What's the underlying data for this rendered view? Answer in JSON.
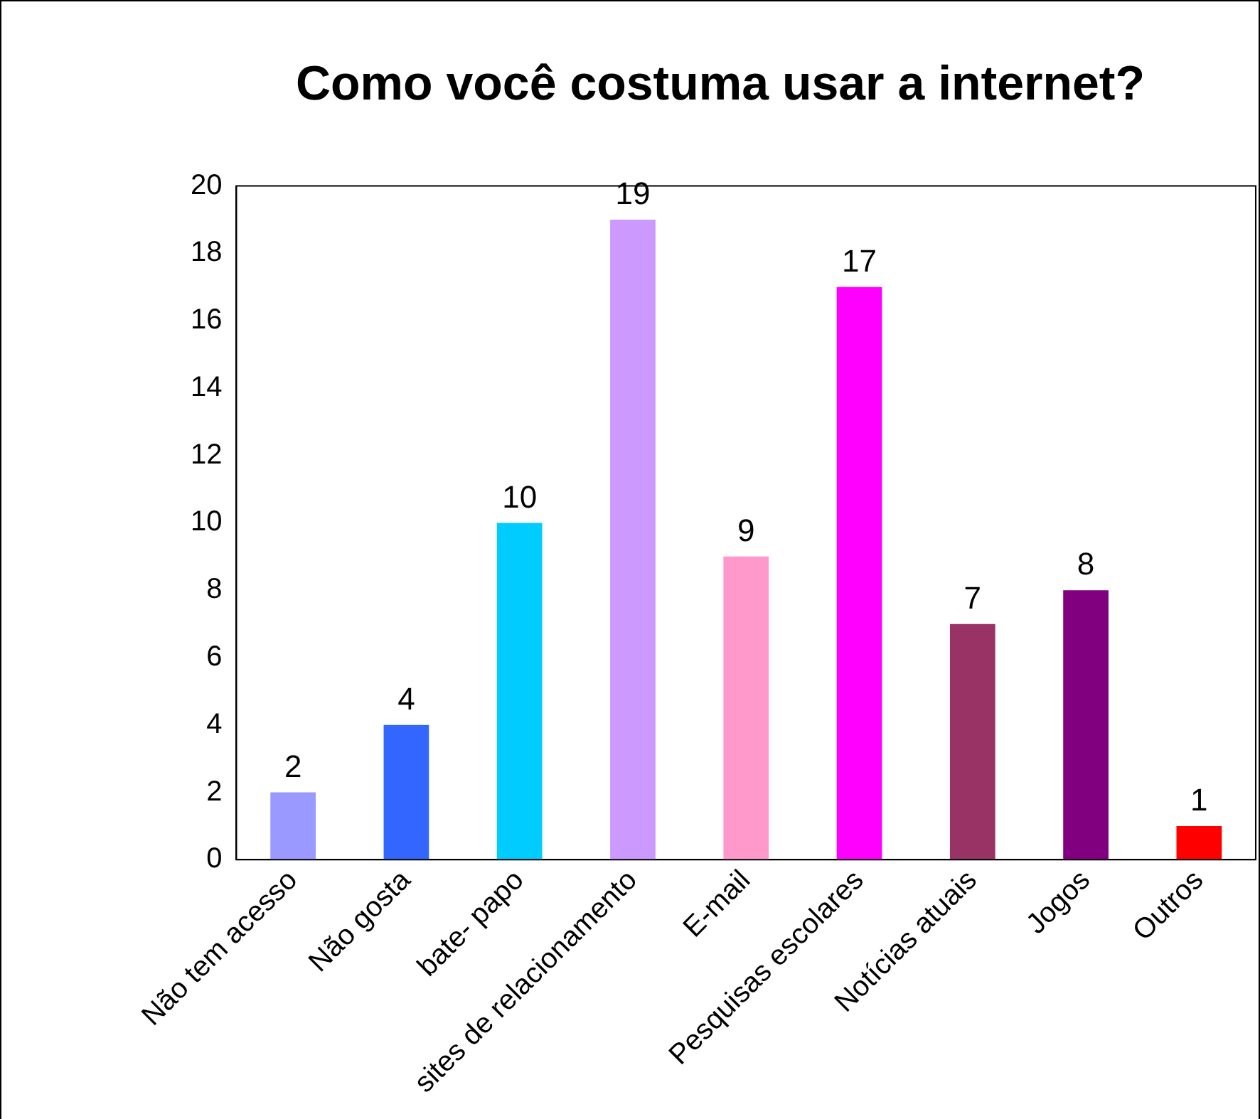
{
  "chart_data": {
    "type": "bar",
    "title": "Como você costuma usar a internet?",
    "categories": [
      "Não tem acesso",
      "Não gosta",
      "bate- papo",
      "sites de relacionamento",
      "E-mail",
      "Pesquisas escolares",
      "Notícias atuais",
      "Jogos",
      "Outros"
    ],
    "values": [
      2,
      4,
      10,
      19,
      9,
      17,
      7,
      8,
      1
    ],
    "colors": [
      "#9999ff",
      "#3366ff",
      "#00ccff",
      "#cc99ff",
      "#ff99cc",
      "#ff00ff",
      "#993366",
      "#800080",
      "#ff0000"
    ],
    "ylim": [
      0,
      20
    ],
    "yticks": [
      0,
      2,
      4,
      6,
      8,
      10,
      12,
      14,
      16,
      18,
      20
    ],
    "grid": false,
    "legend": false,
    "data_labels": true
  }
}
